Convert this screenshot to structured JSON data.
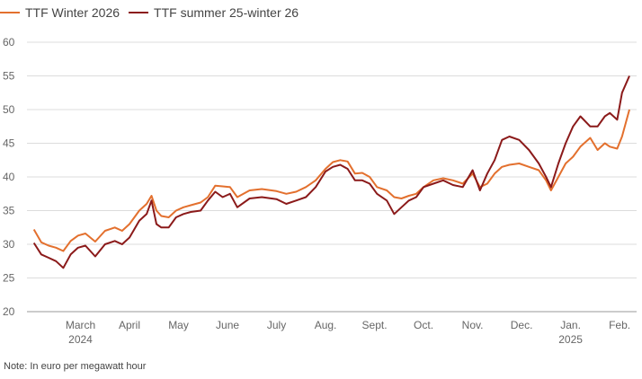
{
  "chart_data": {
    "type": "line",
    "ylim": [
      20,
      60
    ],
    "yticks": [
      20,
      25,
      30,
      35,
      40,
      45,
      50,
      55,
      60
    ],
    "grid": true,
    "legend_position": "top-left",
    "x_month_ticks": [
      {
        "x": 1.0,
        "label": "March",
        "sub": "2024"
      },
      {
        "x": 2.0,
        "label": "April",
        "sub": ""
      },
      {
        "x": 3.0,
        "label": "May",
        "sub": ""
      },
      {
        "x": 4.0,
        "label": "June",
        "sub": ""
      },
      {
        "x": 5.0,
        "label": "July",
        "sub": ""
      },
      {
        "x": 6.0,
        "label": "Aug.",
        "sub": ""
      },
      {
        "x": 7.0,
        "label": "Sept.",
        "sub": ""
      },
      {
        "x": 8.0,
        "label": "Oct.",
        "sub": ""
      },
      {
        "x": 9.0,
        "label": "Nov.",
        "sub": ""
      },
      {
        "x": 10.0,
        "label": "Dec.",
        "sub": ""
      },
      {
        "x": 11.0,
        "label": "Jan.",
        "sub": "2025"
      },
      {
        "x": 12.0,
        "label": "Feb.",
        "sub": ""
      }
    ],
    "series": [
      {
        "name": "TTF Winter 2026",
        "color": "#e3702e",
        "x": [
          0.05,
          0.2,
          0.35,
          0.5,
          0.65,
          0.8,
          0.95,
          1.1,
          1.3,
          1.5,
          1.7,
          1.85,
          2.0,
          2.2,
          2.35,
          2.45,
          2.55,
          2.65,
          2.8,
          2.95,
          3.1,
          3.25,
          3.45,
          3.6,
          3.75,
          3.9,
          4.05,
          4.2,
          4.45,
          4.7,
          5.0,
          5.2,
          5.4,
          5.6,
          5.8,
          6.0,
          6.15,
          6.3,
          6.45,
          6.6,
          6.75,
          6.9,
          7.05,
          7.25,
          7.4,
          7.55,
          7.7,
          7.85,
          8.0,
          8.2,
          8.4,
          8.6,
          8.8,
          9.0,
          9.15,
          9.3,
          9.45,
          9.6,
          9.75,
          9.95,
          10.15,
          10.35,
          10.5,
          10.6,
          10.75,
          10.9,
          11.05,
          11.2,
          11.4,
          11.55,
          11.7,
          11.8,
          11.95,
          12.05,
          12.2
        ],
        "values": [
          32.2,
          30.3,
          29.8,
          29.5,
          29.0,
          30.5,
          31.3,
          31.6,
          30.4,
          32.0,
          32.5,
          32.0,
          33.0,
          35.0,
          36.0,
          37.2,
          35.0,
          34.2,
          34.0,
          35.0,
          35.5,
          35.8,
          36.2,
          37.0,
          38.7,
          38.6,
          38.5,
          37.0,
          38.0,
          38.2,
          37.9,
          37.5,
          37.8,
          38.5,
          39.5,
          41.2,
          42.2,
          42.5,
          42.3,
          40.5,
          40.6,
          40.0,
          38.5,
          38.0,
          37.0,
          36.8,
          37.2,
          37.5,
          38.5,
          39.5,
          39.8,
          39.5,
          39.0,
          40.5,
          38.5,
          39.0,
          40.5,
          41.5,
          41.8,
          42.0,
          41.5,
          41.0,
          39.5,
          38.0,
          40.0,
          42.0,
          43.0,
          44.5,
          45.8,
          44.0,
          45.0,
          44.5,
          44.2,
          46.0,
          50.0
        ]
      },
      {
        "name": "TTF summer 25-winter 26",
        "color": "#8b1a1a",
        "x": [
          0.05,
          0.2,
          0.35,
          0.5,
          0.65,
          0.8,
          0.95,
          1.1,
          1.3,
          1.5,
          1.7,
          1.85,
          2.0,
          2.2,
          2.35,
          2.45,
          2.55,
          2.65,
          2.8,
          2.95,
          3.1,
          3.25,
          3.45,
          3.6,
          3.75,
          3.9,
          4.05,
          4.2,
          4.45,
          4.7,
          5.0,
          5.2,
          5.4,
          5.6,
          5.8,
          6.0,
          6.15,
          6.3,
          6.45,
          6.6,
          6.75,
          6.9,
          7.05,
          7.25,
          7.4,
          7.55,
          7.7,
          7.85,
          8.0,
          8.2,
          8.4,
          8.6,
          8.8,
          9.0,
          9.15,
          9.3,
          9.45,
          9.6,
          9.75,
          9.95,
          10.15,
          10.35,
          10.5,
          10.6,
          10.75,
          10.9,
          11.05,
          11.2,
          11.4,
          11.55,
          11.7,
          11.8,
          11.95,
          12.05,
          12.2
        ],
        "values": [
          30.2,
          28.5,
          28.0,
          27.5,
          26.5,
          28.5,
          29.5,
          29.8,
          28.2,
          30.0,
          30.5,
          30.0,
          31.0,
          33.5,
          34.5,
          36.5,
          33.0,
          32.5,
          32.5,
          34.0,
          34.5,
          34.8,
          35.0,
          36.5,
          37.8,
          37.0,
          37.5,
          35.5,
          36.8,
          37.0,
          36.7,
          36.0,
          36.5,
          37.0,
          38.5,
          40.8,
          41.5,
          41.8,
          41.2,
          39.5,
          39.5,
          39.0,
          37.5,
          36.5,
          34.5,
          35.5,
          36.5,
          37.0,
          38.5,
          39.0,
          39.5,
          38.8,
          38.5,
          41.0,
          38.0,
          40.5,
          42.5,
          45.5,
          46.0,
          45.5,
          44.0,
          42.0,
          40.0,
          38.5,
          42.0,
          45.0,
          47.5,
          49.0,
          47.5,
          47.5,
          49.0,
          49.5,
          48.5,
          52.5,
          55.0
        ]
      }
    ]
  },
  "note": "Note: In euro per megawatt hour"
}
